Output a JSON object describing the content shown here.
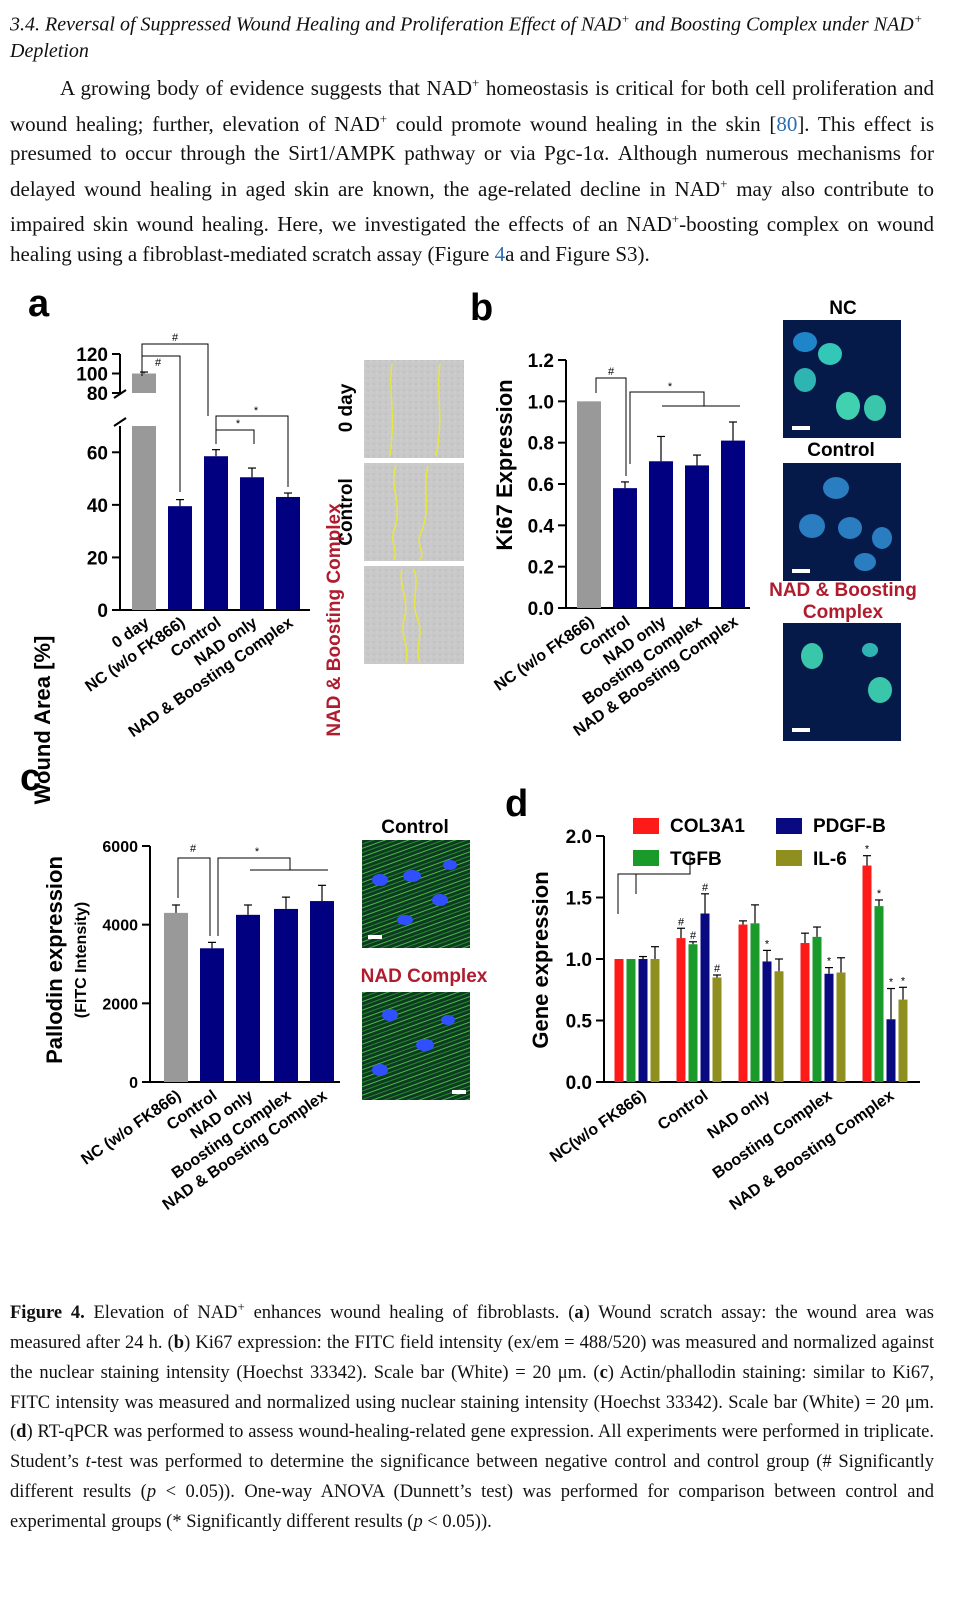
{
  "section": {
    "number": "3.4.",
    "title_part1": "Reversal of Suppressed Wound Healing and Proliferation Effect of NAD",
    "title_part2": " and Boosting Complex under NAD",
    "title_part3": " Depletion",
    "sup_plus": "+"
  },
  "paragraph": {
    "p1": "A growing body of evidence suggests that NAD",
    "p2": " homeostasis is critical for both cell proliferation and wound healing; further, elevation of NAD",
    "p3": " could promote wound healing in the skin [",
    "ref": "80",
    "p4": "]. This effect is presumed to occur through the Sirt1/AMPK pathway or via Pgc-1α. Although numerous mechanisms for delayed wound healing in aged skin are known, the age-related decline in NAD",
    "p5": " may also contribute to impaired skin wound healing. Here, we investigated the effects of an NAD",
    "p6": "-boosting complex on wound healing using a fibroblast-mediated scratch assay (Figure ",
    "figref": "4",
    "p7": "a and Figure S3)."
  },
  "figure": {
    "panel_a": {
      "letter": "a",
      "ylabel": "Wound Area [%]",
      "yticks_upper": [
        "120",
        "100",
        "80"
      ],
      "yticks_lower": [
        "60",
        "40",
        "20",
        "0"
      ],
      "image_labels": [
        "0 day",
        "Control",
        "NAD & Boosting Complex"
      ],
      "significance": [
        "#",
        "#",
        "*",
        "*"
      ]
    },
    "panel_b": {
      "letter": "b",
      "ylabel": "Ki67 Expression",
      "yticks": [
        "1.2",
        "1.0",
        "0.8",
        "0.6",
        "0.4",
        "0.2",
        "0.0"
      ],
      "image_labels": [
        "NC",
        "Control",
        "NAD & Boosting Complex"
      ],
      "significance": [
        "#",
        "*"
      ]
    },
    "panel_c": {
      "letter": "c",
      "ylabel": "Pallodin expression",
      "ylabel2": "(FITC Intensity)",
      "yticks": [
        "6000",
        "4000",
        "2000",
        "0"
      ],
      "image_labels": [
        "Control",
        "NAD Complex"
      ],
      "significance": [
        "#",
        "*"
      ]
    },
    "panel_d": {
      "letter": "d",
      "ylabel": "Gene expression",
      "yticks": [
        "2.0",
        "1.5",
        "1.0",
        "0.5",
        "0.0"
      ],
      "legend": [
        "COL3A1",
        "PDGF-B",
        "TGFB",
        "IL-6"
      ]
    }
  },
  "chart_data": [
    {
      "type": "bar",
      "panel": "a",
      "categories": [
        "0 day",
        "NC (w/o FK866)",
        "Control",
        "NAD only",
        "NAD & Boosting Complex"
      ],
      "values": [
        100,
        39.5,
        58.5,
        50.5,
        43
      ],
      "errors": [
        1.5,
        2.5,
        2.5,
        3.5,
        1.5
      ],
      "colors": [
        "#999999",
        "#000080",
        "#000080",
        "#000080",
        "#000080"
      ],
      "ylabel": "Wound Area [%]",
      "axis_break": [
        70,
        80
      ],
      "ylim": [
        0,
        120
      ]
    },
    {
      "type": "bar",
      "panel": "b",
      "categories": [
        "NC (w/o FK866)",
        "Control",
        "NAD only",
        "Boosting Complex",
        "NAD & Boosting Complex"
      ],
      "values": [
        1.0,
        0.58,
        0.71,
        0.69,
        0.81
      ],
      "errors": [
        0,
        0.03,
        0.12,
        0.05,
        0.09
      ],
      "colors": [
        "#999999",
        "#000080",
        "#000080",
        "#000080",
        "#000080"
      ],
      "ylabel": "Ki67 Expression",
      "ylim": [
        0,
        1.2
      ]
    },
    {
      "type": "bar",
      "panel": "c",
      "categories": [
        "NC (w/o FK866)",
        "Control",
        "NAD only",
        "Boosting Complex",
        "NAD & Boosting Complex"
      ],
      "values": [
        4300,
        3400,
        4250,
        4400,
        4600
      ],
      "errors": [
        200,
        150,
        250,
        300,
        400
      ],
      "colors": [
        "#999999",
        "#000080",
        "#000080",
        "#000080",
        "#000080"
      ],
      "ylabel": "Pallodin expression (FITC Intensity)",
      "ylim": [
        0,
        6000
      ]
    },
    {
      "type": "bar",
      "panel": "d",
      "categories": [
        "NC(w/o FK866)",
        "Control",
        "NAD only",
        "Boosting Complex",
        "NAD & Boosting Complex"
      ],
      "series": [
        {
          "name": "COL3A1",
          "color": "#ff1a1a",
          "values": [
            1.0,
            1.17,
            1.28,
            1.13,
            1.76
          ],
          "errors": [
            0,
            0.08,
            0.03,
            0.08,
            0.08
          ],
          "marks": [
            "",
            "#",
            "",
            "",
            "*"
          ]
        },
        {
          "name": "TGFB",
          "color": "#1a9a2a",
          "values": [
            1.0,
            1.12,
            1.29,
            1.18,
            1.43
          ],
          "errors": [
            0,
            0.02,
            0.15,
            0.08,
            0.05
          ],
          "marks": [
            "",
            "#",
            "",
            "",
            "*"
          ]
        },
        {
          "name": "PDGF-B",
          "color": "#0a0a80",
          "values": [
            1.0,
            1.37,
            0.98,
            0.88,
            0.51
          ],
          "errors": [
            0.02,
            0.16,
            0.09,
            0.05,
            0.25
          ],
          "marks": [
            "",
            "#",
            "*",
            "*",
            "*"
          ]
        },
        {
          "name": "IL-6",
          "color": "#8f8f20",
          "values": [
            1.0,
            0.85,
            0.9,
            0.89,
            0.67
          ],
          "errors": [
            0.1,
            0.02,
            0.1,
            0.12,
            0.1
          ],
          "marks": [
            "",
            "#",
            "",
            "",
            "*"
          ]
        }
      ],
      "ylabel": "Gene expression",
      "ylim": [
        0,
        2.0
      ]
    }
  ],
  "caption": {
    "label": "Figure 4.",
    "c1": " Elevation of NAD",
    "c2": " enhances wound healing of fibroblasts. (",
    "a": "a",
    "c3": ") Wound scratch assay: the wound area was measured after 24 h. (",
    "b": "b",
    "c4": ") Ki67 expression: the FITC field intensity (ex/em = 488/520) was measured and normalized against the nuclear staining intensity (Hoechst 33342). Scale bar (White) = 20 μm. (",
    "c": "c",
    "c5": ") Actin/phallodin staining: similar to Ki67, FITC intensity was measured and normalized using nuclear staining intensity (Hoechst 33342). Scale bar (White) = 20 μm. (",
    "d": "d",
    "c6": ") RT-qPCR was performed to assess wound-healing-related gene expression. All experiments were performed in triplicate. Student’s ",
    "t": "t",
    "c7": "-test was performed to determine the significance between negative control and control group (# Significantly different results (",
    "p": "p",
    "c8": " < 0.05)). One-way ANOVA (Dunnett’s test) was performed for comparison between control and experimental groups (* Significantly different results (",
    "c9": " < 0.05))."
  }
}
